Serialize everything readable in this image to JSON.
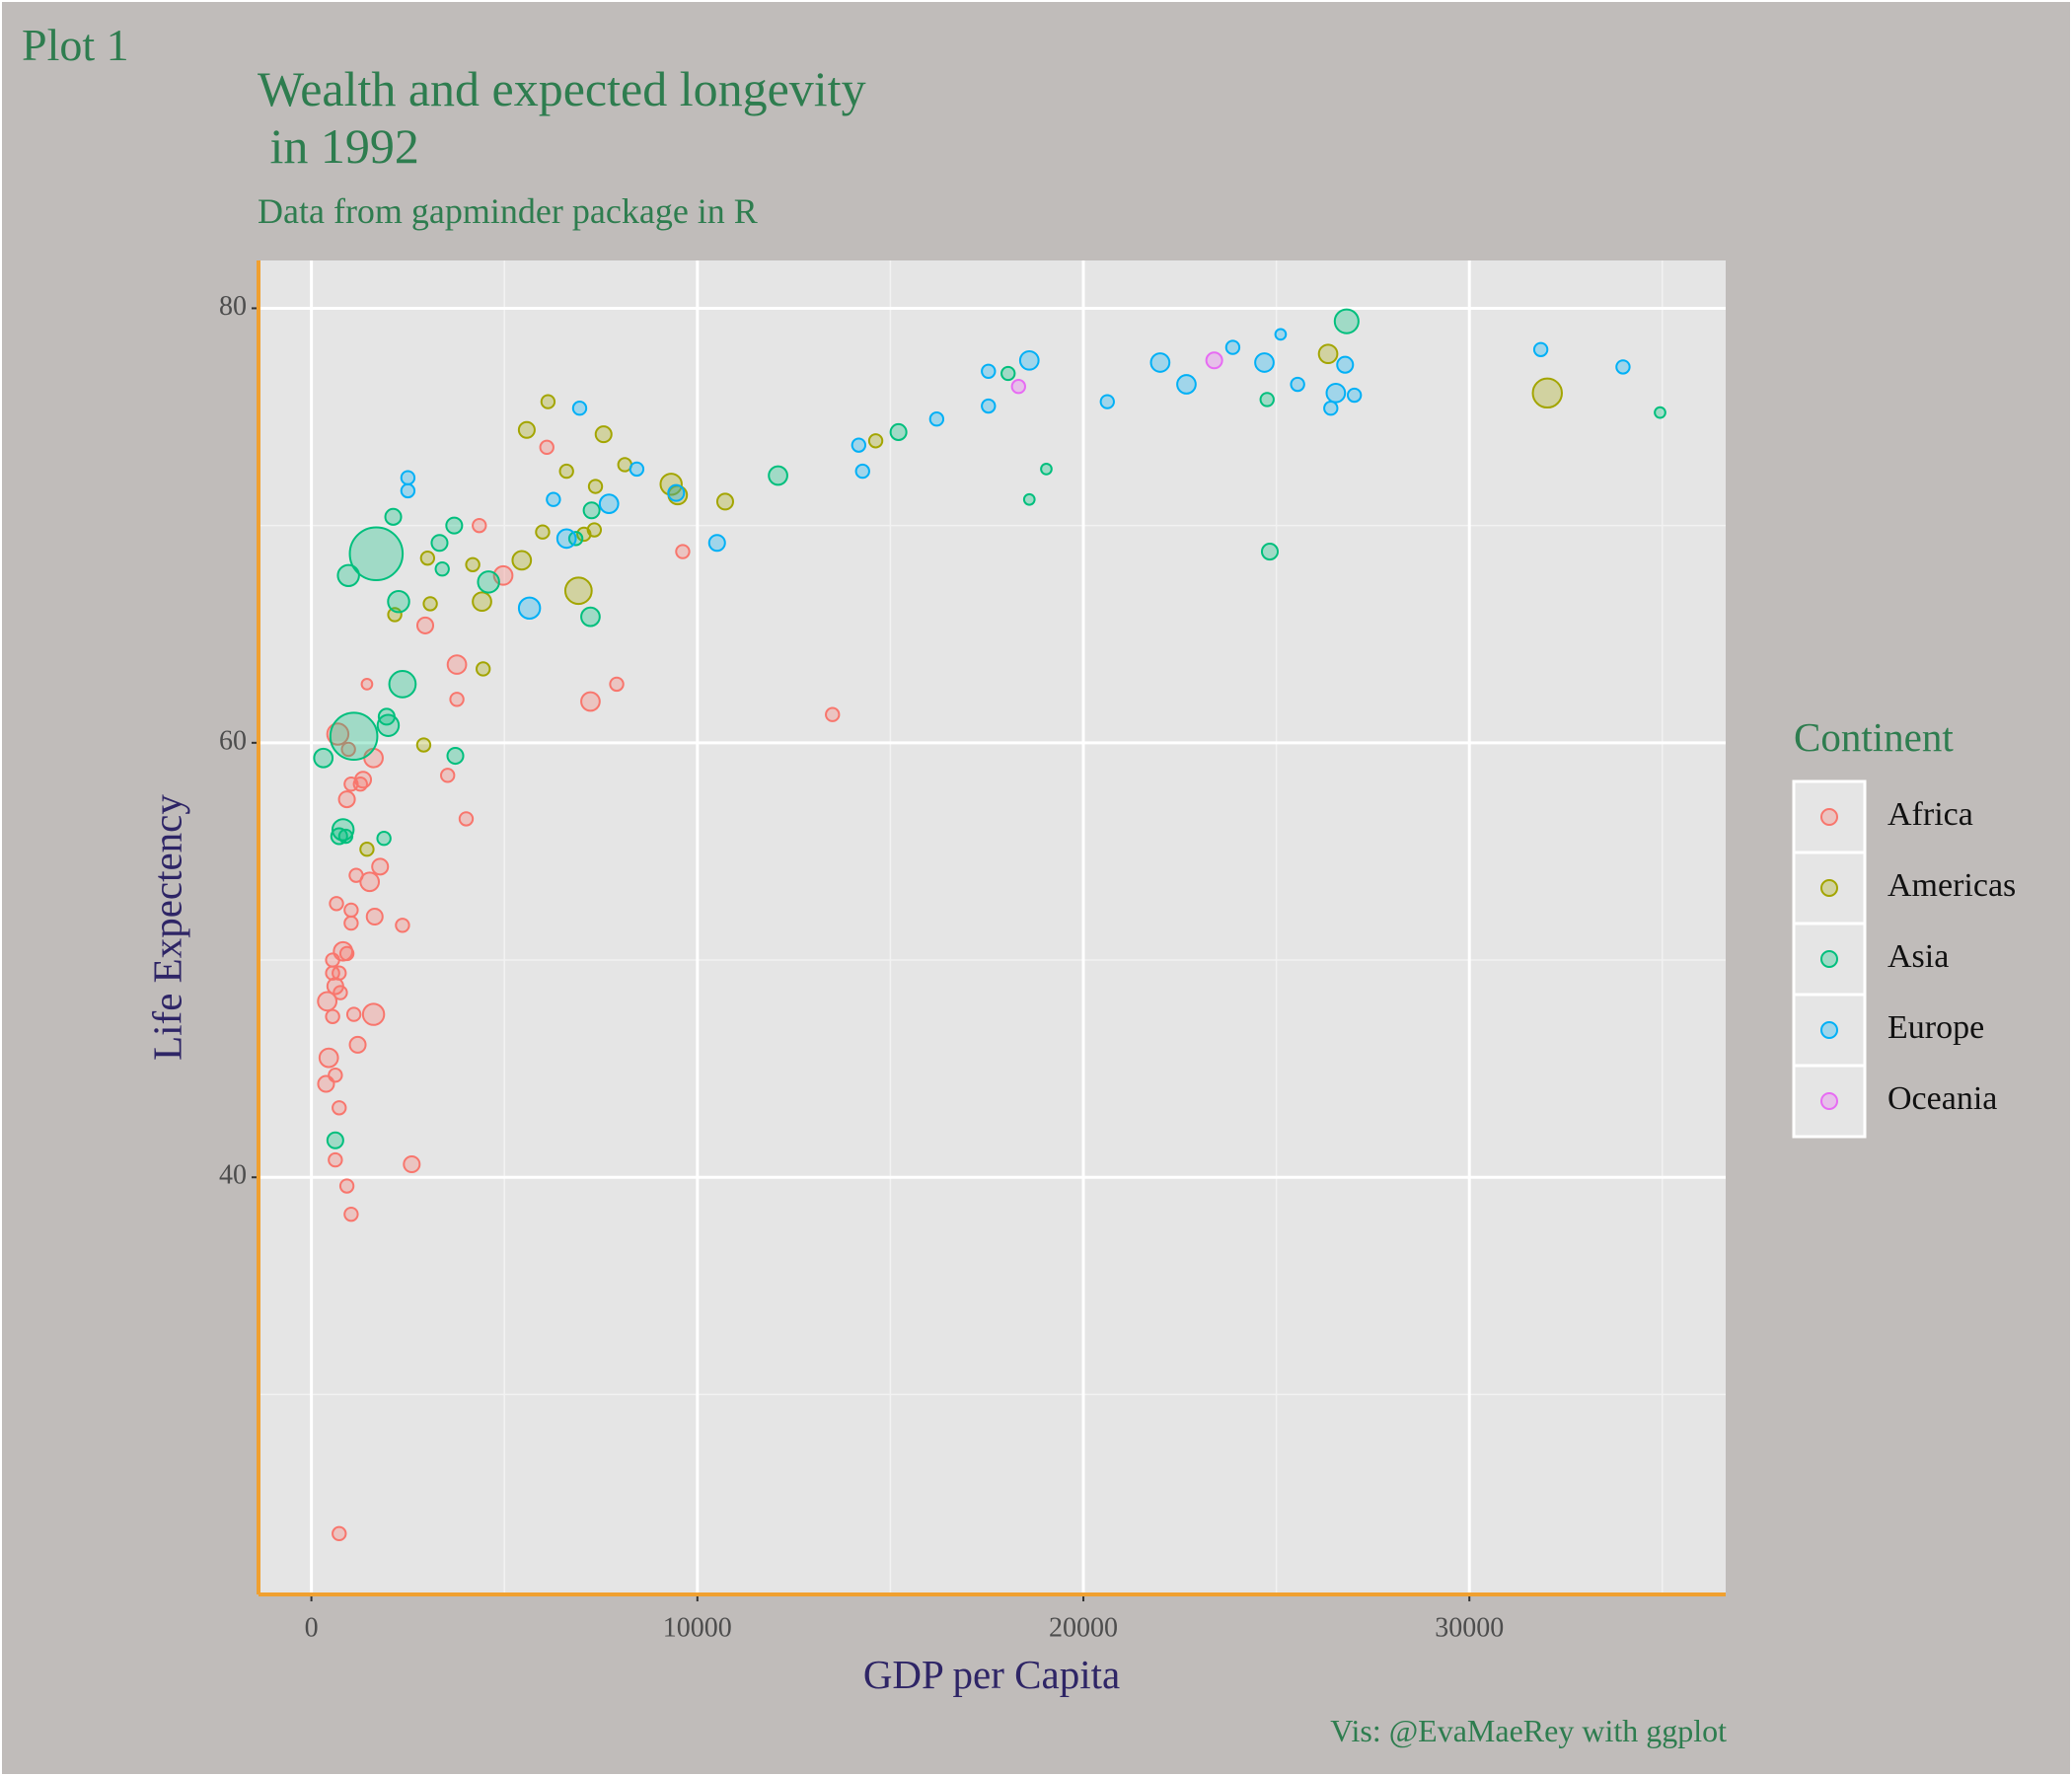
{
  "chart_data": {
    "type": "scatter",
    "tag": "Plot 1",
    "title": "Wealth and expected longevity\n in 1992",
    "subtitle": "Data from gapminder package in R",
    "caption": "Vis: @EvaMaeRey with ggplot",
    "x_label": "GDP per Capita",
    "y_label": "Life Expectency",
    "legend_title": "Continent",
    "legend_position": "right",
    "grid": true,
    "xlim": [
      -1370,
      36640
    ],
    "ylim": [
      20.8,
      82.2
    ],
    "xticks": [
      0,
      10000,
      20000,
      30000
    ],
    "yticks": [
      40,
      60,
      80
    ],
    "xminor": [
      5000,
      15000,
      25000,
      35000
    ],
    "yminor": [
      30,
      50,
      70
    ],
    "series": [
      {
        "name": "Africa",
        "color": "#F8766D",
        "x": [
          685,
          1440,
          1610,
          1340,
          1270,
          1030,
          920,
          1780,
          1510,
          1160,
          650,
          1030,
          1030,
          1640,
          2360,
          820,
          920,
          550,
          550,
          720,
          620,
          750,
          410,
          550,
          1100,
          1610,
          1200,
          450,
          620,
          380,
          720,
          620,
          2600,
          920,
          1030,
          720,
          2950,
          3770,
          3770,
          3530,
          4010,
          4970,
          4350,
          6100,
          7910,
          7230,
          9620,
          13500,
          960
        ],
        "values": [
          60.4,
          62.7,
          59.3,
          58.3,
          58.1,
          58.1,
          57.4,
          54.3,
          53.6,
          53.9,
          52.6,
          52.3,
          51.7,
          52.0,
          51.6,
          50.4,
          50.3,
          50.0,
          49.4,
          49.4,
          48.8,
          48.5,
          48.1,
          47.4,
          47.5,
          47.5,
          46.1,
          45.5,
          44.7,
          44.3,
          43.2,
          40.8,
          40.6,
          39.6,
          38.3,
          23.6,
          65.4,
          63.6,
          62.0,
          58.5,
          56.5,
          67.7,
          70.0,
          73.6,
          62.7,
          61.9,
          68.8,
          61.3,
          59.7
        ],
        "sizes": [
          101,
          4,
          64,
          36,
          16,
          16,
          36,
          36,
          64,
          16,
          16,
          16,
          16,
          36,
          16,
          64,
          16,
          16,
          16,
          16,
          36,
          16,
          64,
          16,
          16,
          101,
          36,
          64,
          16,
          36,
          16,
          16,
          36,
          16,
          16,
          16,
          36,
          64,
          16,
          16,
          16,
          64,
          16,
          16,
          16,
          64,
          16,
          16,
          16
        ]
      },
      {
        "name": "Americas",
        "color": "#A3A500",
        "x": [
          32020,
          26340,
          5580,
          6130,
          7570,
          6610,
          8120,
          7360,
          14620,
          9320,
          9490,
          10720,
          7330,
          7060,
          5990,
          3010,
          4180,
          5450,
          6920,
          4420,
          3080,
          2160,
          4450,
          2910,
          1440
        ],
        "values": [
          76.1,
          77.9,
          74.4,
          75.7,
          74.2,
          72.5,
          72.8,
          71.8,
          73.9,
          71.9,
          71.4,
          71.1,
          69.8,
          69.6,
          69.7,
          68.5,
          68.2,
          68.4,
          67.0,
          66.5,
          66.4,
          65.9,
          63.4,
          59.9,
          55.1
        ],
        "sizes": [
          258,
          64,
          36,
          16,
          36,
          16,
          16,
          16,
          16,
          101,
          64,
          36,
          16,
          16,
          16,
          16,
          16,
          64,
          197,
          64,
          16,
          16,
          16,
          16,
          16
        ]
      },
      {
        "name": "Asia",
        "color": "#00BF7D",
        "x": [
          1680,
          1100,
          26820,
          18050,
          15210,
          12090,
          34940,
          19040,
          18600,
          24760,
          24830,
          2120,
          3320,
          3700,
          3390,
          960,
          4590,
          2260,
          7230,
          7260,
          6850,
          2360,
          1950,
          1990,
          310,
          3730,
          820,
          720,
          890,
          1880,
          620
        ],
        "values": [
          68.7,
          60.3,
          79.4,
          77.0,
          74.3,
          72.3,
          75.2,
          72.6,
          71.2,
          75.8,
          68.8,
          70.4,
          69.2,
          70.0,
          68.0,
          67.7,
          67.4,
          66.5,
          65.8,
          70.7,
          69.4,
          62.7,
          61.2,
          60.8,
          59.3,
          59.4,
          56.0,
          55.7,
          55.7,
          55.6,
          41.7
        ],
        "sizes": [
          1165,
          880,
          145,
          16,
          36,
          64,
          4,
          4,
          4,
          16,
          36,
          36,
          36,
          36,
          16,
          101,
          101,
          101,
          64,
          36,
          16,
          197,
          36,
          101,
          64,
          36,
          101,
          36,
          16,
          16,
          36
        ]
      },
      {
        "name": "Europe",
        "color": "#00B0F6",
        "x": [
          31850,
          33980,
          25110,
          23870,
          24690,
          26780,
          21990,
          22670,
          25550,
          26540,
          27020,
          26410,
          18600,
          17540,
          17540,
          20620,
          16200,
          14180,
          14280,
          6950,
          8430,
          9450,
          6270,
          7710,
          6610,
          10510,
          5650,
          2500,
          2500
        ],
        "values": [
          78.1,
          77.3,
          78.8,
          78.2,
          77.5,
          77.4,
          77.5,
          76.5,
          76.5,
          76.1,
          76.0,
          75.4,
          77.6,
          77.1,
          75.5,
          75.7,
          74.9,
          73.7,
          72.5,
          75.4,
          72.6,
          71.5,
          71.2,
          71.0,
          69.4,
          69.2,
          66.2,
          72.2,
          71.6
        ],
        "sizes": [
          16,
          16,
          4,
          16,
          64,
          36,
          64,
          64,
          16,
          64,
          16,
          16,
          64,
          16,
          16,
          16,
          16,
          16,
          16,
          16,
          16,
          36,
          16,
          64,
          64,
          36,
          101,
          16,
          16
        ]
      },
      {
        "name": "Oceania",
        "color": "#E76BF3",
        "x": [
          23390,
          18320
        ],
        "values": [
          77.6,
          76.4
        ],
        "sizes": [
          36,
          16
        ]
      }
    ]
  }
}
